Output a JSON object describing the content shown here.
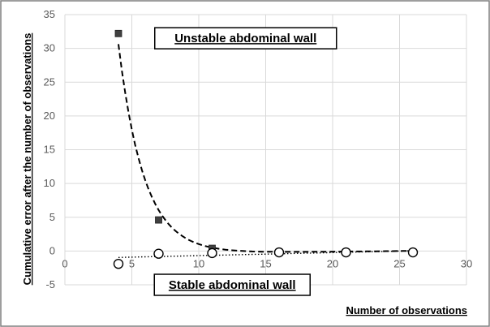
{
  "chart_data": {
    "type": "scatter",
    "xlabel": "Number of observations",
    "ylabel": "Cumulative error after the number of observations",
    "xlim": [
      0,
      30
    ],
    "ylim": [
      -5,
      35
    ],
    "x_ticks": [
      "0",
      "5",
      "10",
      "15",
      "20",
      "25",
      "30"
    ],
    "y_ticks": [
      "-5",
      "0",
      "5",
      "10",
      "15",
      "20",
      "25",
      "30",
      "35"
    ],
    "grid": true,
    "legend": "none",
    "series": [
      {
        "marker": "filled-square",
        "color": "#404040",
        "trendline": "dashed",
        "x": [
          4,
          7,
          11,
          16,
          21,
          26
        ],
        "y": [
          32.2,
          4.6,
          0.4,
          -0.2,
          -0.2,
          -0.2
        ]
      },
      {
        "marker": "open-circle",
        "color": "#000000",
        "trendline": "dotted",
        "x": [
          4,
          7,
          11,
          16,
          21,
          26
        ],
        "y": [
          -1.9,
          -0.4,
          -0.3,
          -0.2,
          -0.2,
          -0.2
        ]
      }
    ],
    "annotations": [
      {
        "text": "Unstable abdominal wall",
        "anchor_x": 13.5,
        "anchor_y": 31.5
      },
      {
        "text": "Stable abdominal wall",
        "anchor_x": 12.5,
        "anchor_y": -5
      }
    ]
  }
}
